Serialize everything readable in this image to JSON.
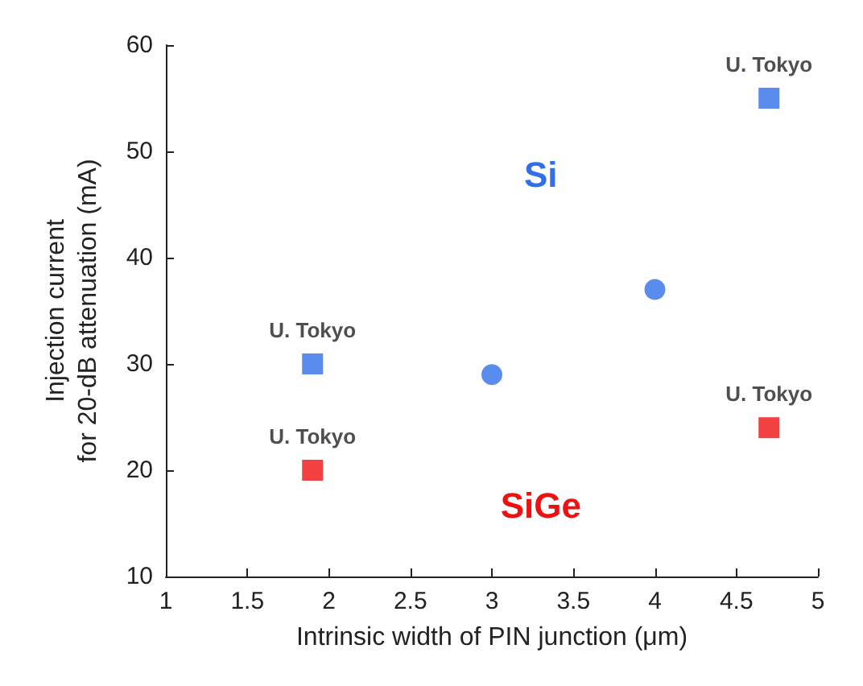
{
  "chart_data": {
    "type": "scatter",
    "xlabel": "Intrinsic width of PIN junction (μm)",
    "ylabel": "Injection current\nfor 20-dB attenuation (mA)",
    "series": [
      {
        "name": "Si",
        "color": "#2f6fe8",
        "marker": "square",
        "x": [
          1.9,
          4.7
        ],
        "values": [
          30,
          55
        ],
        "value_labels": [
          "U. Tokyo",
          "U. Tokyo"
        ]
      },
      {
        "color": "#2f6fe8",
        "marker": "circle",
        "x": [
          3,
          4
        ],
        "values": [
          29,
          37
        ]
      },
      {
        "name": "SiGe",
        "color": "#ee1111",
        "marker": "square",
        "x": [
          1.9,
          4.7
        ],
        "values": [
          20,
          24
        ],
        "value_labels": [
          "U. Tokyo",
          "U. Tokyo"
        ]
      }
    ],
    "xlim": [
      1,
      5
    ],
    "xticks": [
      1,
      1.5,
      2,
      2.5,
      3,
      3.5,
      4,
      4.5,
      5
    ],
    "ylim": [
      10,
      60
    ],
    "yticks": [
      10,
      20,
      30,
      40,
      50,
      60
    ],
    "grid": false,
    "legend": false
  }
}
